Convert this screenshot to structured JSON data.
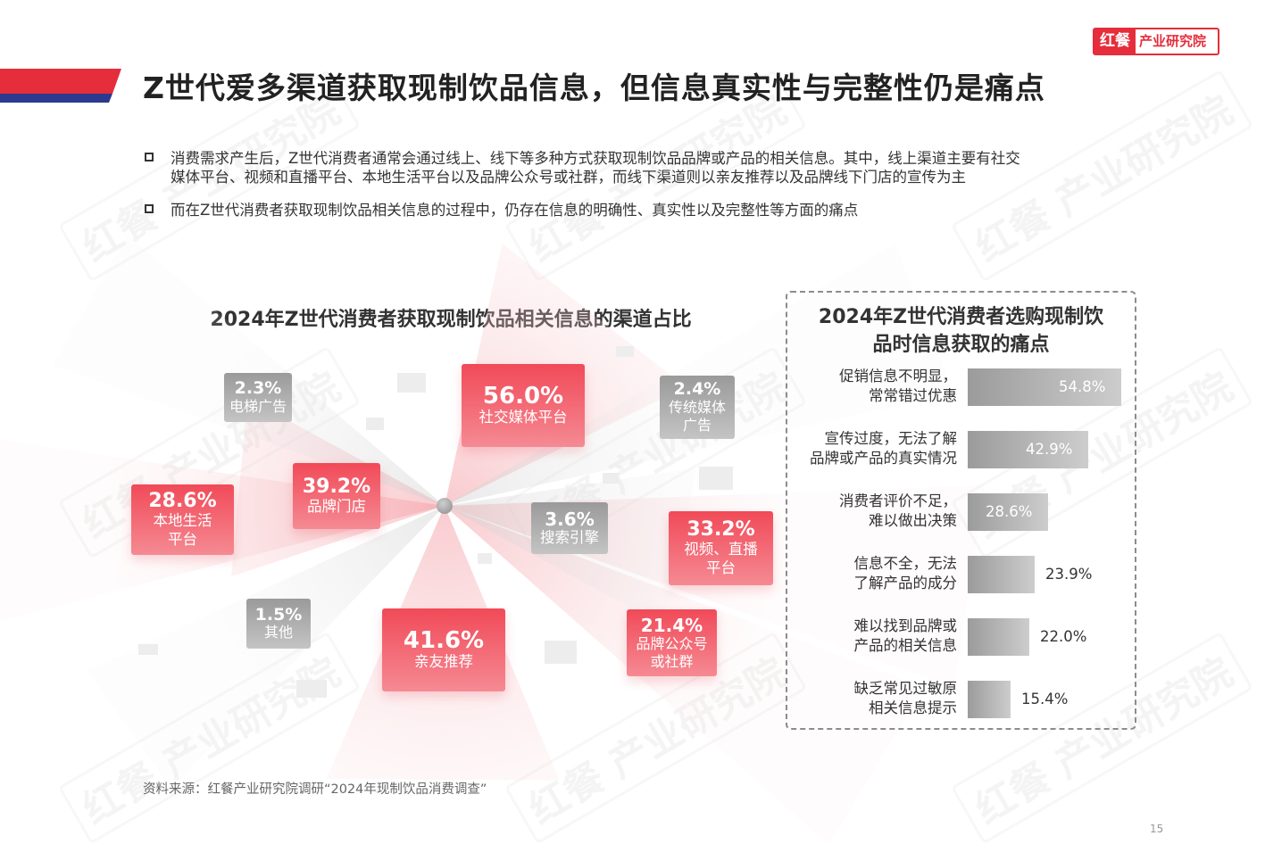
{
  "logo": {
    "mark": "红餐",
    "text": "产业研究院"
  },
  "page_title": "Z世代爱多渠道获取现制饮品信息，但信息真实性与完整性仍是痛点",
  "bullets": [
    "消费需求产生后，Z世代消费者通常会通过线上、线下等多种方式获取现制饮品品牌或产品的相关信息。其中，线上渠道主要有社交\n媒体平台、视频和直播平台、本地生活平台以及品牌公众号或社群，而线下渠道则以亲友推荐以及品牌线下门店的宣传为主",
    "而在Z世代消费者获取现制饮品相关信息的过程中，仍存在信息的明确性、真实性以及完整性等方面的痛点"
  ],
  "watermark": "红餐 产业研究院",
  "source": "资料来源：红餐产业研究院调研“2024年现制饮品消费调查”",
  "page_number": "15",
  "colors": {
    "accent": "#e52d3c",
    "navy": "#2b3a8f",
    "gray_bar": "#9b9b9b"
  },
  "chart_data": [
    {
      "type": "radial-bubble",
      "title": "2024年Z世代消费者获取现制饮品相关信息的渠道占比",
      "unit": "%",
      "points": [
        {
          "label": "社交媒体平台",
          "value": 56.0,
          "display": "56.0%",
          "style": "red"
        },
        {
          "label": "亲友推荐",
          "value": 41.6,
          "display": "41.6%",
          "style": "red"
        },
        {
          "label": "品牌门店",
          "value": 39.2,
          "display": "39.2%",
          "style": "red"
        },
        {
          "label": "视频、直播\n平台",
          "value": 33.2,
          "display": "33.2%",
          "style": "red"
        },
        {
          "label": "本地生活\n平台",
          "value": 28.6,
          "display": "28.6%",
          "style": "red"
        },
        {
          "label": "品牌公众号\n或社群",
          "value": 21.4,
          "display": "21.4%",
          "style": "red"
        },
        {
          "label": "搜索引擎",
          "value": 3.6,
          "display": "3.6%",
          "style": "gray"
        },
        {
          "label": "传统媒体\n广告",
          "value": 2.4,
          "display": "2.4%",
          "style": "gray"
        },
        {
          "label": "电梯广告",
          "value": 2.3,
          "display": "2.3%",
          "style": "gray"
        },
        {
          "label": "其他",
          "value": 1.5,
          "display": "1.5%",
          "style": "gray"
        }
      ]
    },
    {
      "type": "bar",
      "orientation": "horizontal",
      "title": "2024年Z世代消费者选购现制饮\n品时信息获取的痛点",
      "unit": "%",
      "xlim": [
        0,
        60
      ],
      "categories": [
        "促销信息不明显，\n常常错过优惠",
        "宣传过度，无法了解\n品牌或产品的真实情况",
        "消费者评价不足，\n难以做出决策",
        "信息不全，无法\n了解产品的成分",
        "难以找到品牌或\n产品的相关信息",
        "缺乏常见过敏原\n相关信息提示"
      ],
      "values": [
        54.8,
        42.9,
        28.6,
        23.9,
        22.0,
        15.4
      ],
      "display": [
        "54.8%",
        "42.9%",
        "28.6%",
        "23.9%",
        "22.0%",
        "15.4%"
      ]
    }
  ]
}
